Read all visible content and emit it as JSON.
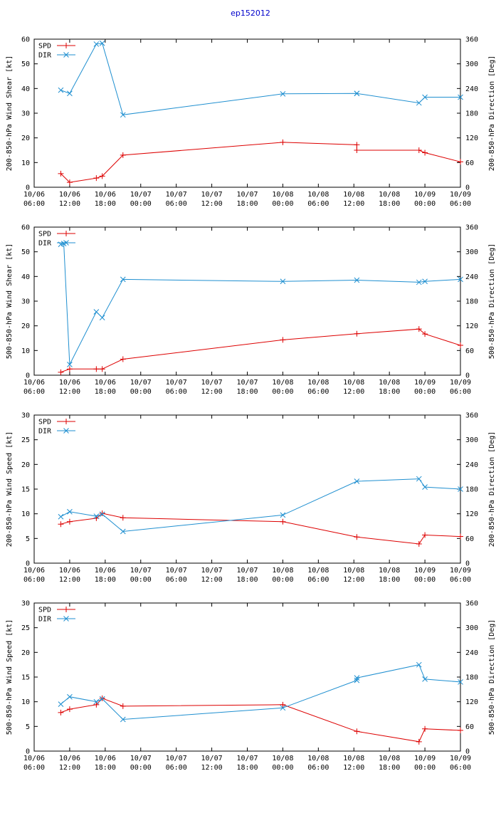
{
  "title": "ep152012",
  "colors": {
    "spd": "#dd0000",
    "dir": "#1f8fd0",
    "axis": "#000000",
    "title": "#0000cc"
  },
  "x_ticks": [
    {
      "date": "10/06",
      "time": "06:00"
    },
    {
      "date": "10/06",
      "time": "12:00"
    },
    {
      "date": "10/06",
      "time": "18:00"
    },
    {
      "date": "10/07",
      "time": "00:00"
    },
    {
      "date": "10/07",
      "time": "06:00"
    },
    {
      "date": "10/07",
      "time": "12:00"
    },
    {
      "date": "10/07",
      "time": "18:00"
    },
    {
      "date": "10/08",
      "time": "00:00"
    },
    {
      "date": "10/08",
      "time": "06:00"
    },
    {
      "date": "10/08",
      "time": "12:00"
    },
    {
      "date": "10/08",
      "time": "18:00"
    },
    {
      "date": "10/09",
      "time": "00:00"
    },
    {
      "date": "10/09",
      "time": "06:00"
    }
  ],
  "chart_data": [
    {
      "type": "line",
      "ylabel": "200-850-hPa Wind Shear [kt]",
      "y2label": "200-850-hPa Direction [Deg]",
      "ylim": [
        0,
        60
      ],
      "yticks": [
        0,
        10,
        20,
        30,
        40,
        50,
        60
      ],
      "y2lim": [
        0,
        360
      ],
      "y2ticks": [
        0,
        60,
        120,
        180,
        240,
        300,
        360
      ],
      "xlim": [
        0,
        72
      ],
      "legend": [
        "SPD",
        "DIR"
      ],
      "series": [
        {
          "name": "SPD",
          "axis": "left",
          "x": [
            4.5,
            6,
            10.5,
            11.5,
            15,
            42,
            54.5,
            54.5,
            65,
            66,
            72
          ],
          "y": [
            5.5,
            2,
            3.7,
            4.5,
            13,
            18.2,
            17.2,
            15,
            15,
            14,
            10.3
          ]
        },
        {
          "name": "DIR",
          "axis": "right",
          "x": [
            4.5,
            6,
            10.5,
            11.5,
            15,
            42,
            54.5,
            54.5,
            65,
            66,
            72
          ],
          "y": [
            236,
            228,
            348,
            350,
            176,
            227,
            228,
            228,
            205,
            219,
            219
          ]
        }
      ]
    },
    {
      "type": "line",
      "ylabel": "500-850-hPa Wind Shear [kt]",
      "y2label": "500-850-hPa Direction [Deg]",
      "ylim": [
        0,
        60
      ],
      "yticks": [
        0,
        10,
        20,
        30,
        40,
        50,
        60
      ],
      "y2lim": [
        0,
        360
      ],
      "y2ticks": [
        0,
        60,
        120,
        180,
        240,
        300,
        360
      ],
      "xlim": [
        0,
        72
      ],
      "legend": [
        "SPD",
        "DIR"
      ],
      "series": [
        {
          "name": "SPD",
          "axis": "left",
          "x": [
            4.5,
            6,
            10.5,
            11.5,
            15,
            42,
            54.5,
            65,
            66,
            72
          ],
          "y": [
            1.2,
            2.5,
            2.5,
            2.5,
            6.5,
            14.3,
            16.8,
            18.7,
            16.7,
            12.1
          ]
        },
        {
          "name": "DIR",
          "axis": "right",
          "x": [
            4.5,
            5,
            6,
            10.5,
            11.5,
            15,
            42,
            54.5,
            65,
            66,
            72
          ],
          "y": [
            318,
            320,
            26,
            154,
            140,
            233,
            228,
            231,
            226,
            228,
            233
          ]
        }
      ]
    },
    {
      "type": "line",
      "ylabel": "200-850-hPa Wind Speed [kt]",
      "y2label": "200-850-hPa Direction [Deg]",
      "ylim": [
        0,
        30
      ],
      "yticks": [
        0,
        5,
        10,
        15,
        20,
        25,
        30
      ],
      "y2lim": [
        0,
        360
      ],
      "y2ticks": [
        0,
        60,
        120,
        180,
        240,
        300,
        360
      ],
      "xlim": [
        0,
        72
      ],
      "legend": [
        "SPD",
        "DIR"
      ],
      "series": [
        {
          "name": "SPD",
          "axis": "left",
          "x": [
            4.5,
            6,
            10.5,
            11.5,
            15,
            42,
            54.5,
            65,
            66,
            72
          ],
          "y": [
            7.9,
            8.4,
            9.1,
            10.1,
            9.2,
            8.4,
            5.3,
            3.9,
            5.7,
            5.4
          ]
        },
        {
          "name": "DIR",
          "axis": "right",
          "x": [
            4.5,
            6,
            10.5,
            11.5,
            15,
            42,
            54.5,
            65,
            66,
            72
          ],
          "y": [
            113,
            125,
            114,
            119,
            77,
            117,
            199,
            205,
            185,
            180
          ]
        }
      ]
    },
    {
      "type": "line",
      "ylabel": "500-850-hPa Wind Speed [kt]",
      "y2label": "500-850-hPa Direction [Deg]",
      "ylim": [
        0,
        30
      ],
      "yticks": [
        0,
        5,
        10,
        15,
        20,
        25,
        30
      ],
      "y2lim": [
        0,
        360
      ],
      "y2ticks": [
        0,
        60,
        120,
        180,
        240,
        300,
        360
      ],
      "xlim": [
        0,
        72
      ],
      "legend": [
        "SPD",
        "DIR"
      ],
      "series": [
        {
          "name": "SPD",
          "axis": "left",
          "x": [
            4.5,
            6,
            10.5,
            11.5,
            15,
            42,
            54.5,
            65,
            66,
            72
          ],
          "y": [
            7.8,
            8.5,
            9.4,
            10.7,
            9.1,
            9.4,
            4,
            1.9,
            4.5,
            4.2
          ]
        },
        {
          "name": "DIR",
          "axis": "right",
          "x": [
            4.5,
            6,
            10.5,
            11.5,
            15,
            42,
            54.5,
            54.5,
            65,
            66,
            72
          ],
          "y": [
            114,
            132,
            120,
            127,
            77,
            105,
            172,
            178,
            210,
            175,
            168
          ]
        }
      ]
    }
  ]
}
